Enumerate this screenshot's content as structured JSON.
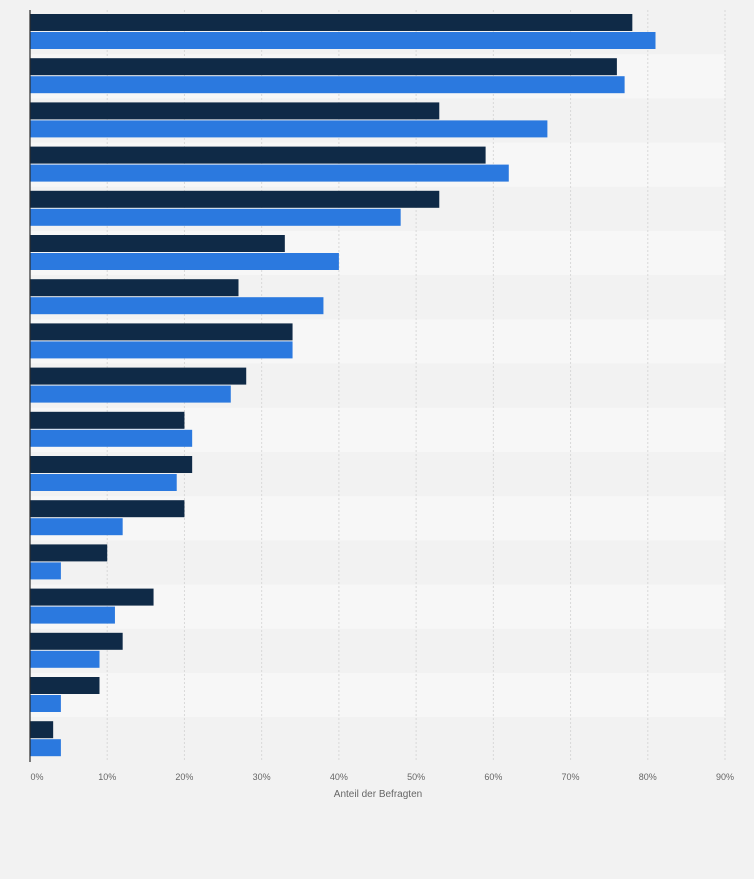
{
  "chart_data": {
    "type": "bar",
    "orientation": "horizontal",
    "categories": [
      "",
      "",
      "",
      "",
      "",
      "",
      "",
      "",
      "",
      "",
      "",
      "",
      "",
      "",
      "",
      "",
      ""
    ],
    "series": [
      {
        "color": "#0f2a47",
        "values": [
          78,
          76,
          53,
          59,
          53,
          33,
          27,
          34,
          28,
          20,
          21,
          20,
          10,
          16,
          12,
          9,
          3
        ]
      },
      {
        "color": "#2b79df",
        "values": [
          81,
          77,
          67,
          62,
          48,
          40,
          38,
          34,
          26,
          21,
          19,
          12,
          4,
          11,
          9,
          4,
          4
        ]
      }
    ],
    "x_ticks": [
      "0%",
      "10%",
      "20%",
      "30%",
      "40%",
      "50%",
      "60%",
      "70%",
      "80%",
      "90%"
    ],
    "xlim": [
      0,
      90
    ],
    "xlabel": "Anteil der Befragten",
    "ylabel": "",
    "grid": true,
    "legend": "none"
  },
  "colors": {
    "background": "#f2f2f2",
    "band_light": "#f7f7f7",
    "band_dark": "#f2f2f2",
    "gridline": "#d8d8d8",
    "axis": "#2b2b2b"
  }
}
